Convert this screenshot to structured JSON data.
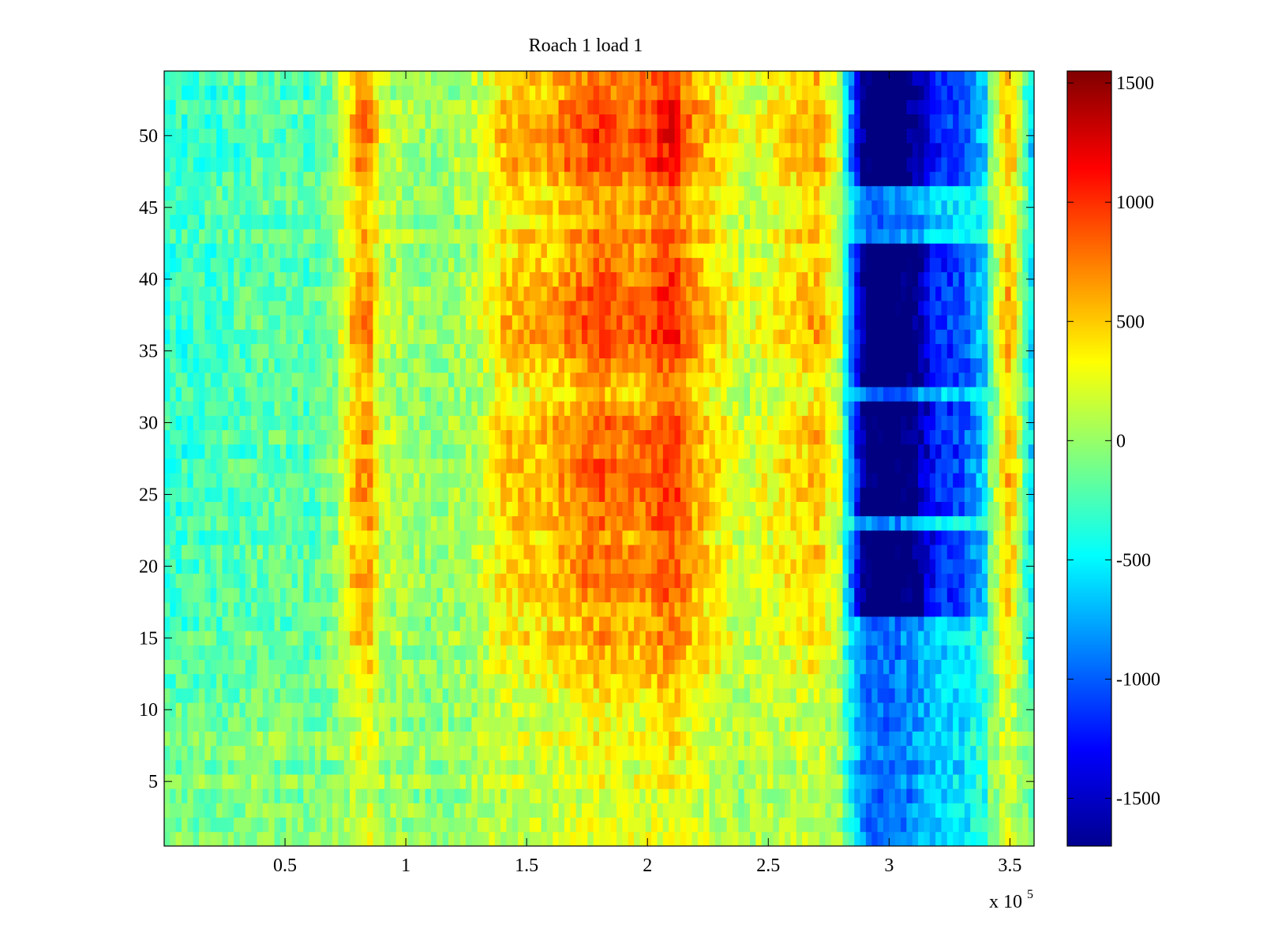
{
  "chart_data": {
    "type": "heatmap",
    "title": "Roach 1 load 1",
    "xlabel": "",
    "ylabel": "",
    "x_multiplier_label": "x 10",
    "x_multiplier_exponent": "5",
    "x_scale": 100000,
    "xlim": [
      0,
      360000
    ],
    "ylim": [
      0.5,
      54.5
    ],
    "x_ticks": [
      50000,
      100000,
      150000,
      200000,
      250000,
      300000,
      350000
    ],
    "x_tick_labels": [
      "0.5",
      "1",
      "1.5",
      "2",
      "2.5",
      "3",
      "3.5"
    ],
    "y_ticks": [
      5,
      10,
      15,
      20,
      25,
      30,
      35,
      40,
      45,
      50
    ],
    "y_tick_labels": [
      "5",
      "10",
      "15",
      "20",
      "25",
      "30",
      "35",
      "40",
      "45",
      "50"
    ],
    "n_rows": 54,
    "colormap": "jet",
    "clim": [
      -1700,
      1550
    ],
    "colorbar_ticks": [
      1500,
      1000,
      500,
      0,
      -500,
      -1000,
      -1500
    ],
    "colorbar_tick_labels": [
      "1500",
      "1000",
      "500",
      "0",
      "-500",
      "-1000",
      "-1500"
    ],
    "column_profile": {
      "x": [
        0,
        20000,
        40000,
        60000,
        70000,
        80000,
        85000,
        90000,
        110000,
        130000,
        140000,
        160000,
        180000,
        195000,
        210000,
        220000,
        240000,
        260000,
        270000,
        280000,
        290000,
        300000,
        310000,
        320000,
        330000,
        340000,
        350000,
        360000
      ],
      "v": [
        -350,
        -300,
        -200,
        -250,
        -100,
        600,
        650,
        100,
        -50,
        100,
        450,
        550,
        850,
        700,
        1000,
        600,
        150,
        400,
        550,
        100,
        -1500,
        -1650,
        -1400,
        -900,
        -800,
        -300,
        600,
        -700
      ]
    },
    "row_weight": {
      "y": [
        1,
        5,
        10,
        13,
        17,
        19,
        22,
        24,
        27,
        30,
        32,
        35,
        38,
        40,
        43,
        46,
        48,
        50,
        54
      ],
      "w": [
        0.3,
        0.3,
        0.4,
        0.7,
        0.8,
        0.95,
        0.85,
        1.0,
        1.0,
        1.0,
        0.7,
        1.05,
        1.1,
        1.0,
        0.9,
        0.75,
        1.15,
        1.15,
        0.95
      ]
    },
    "bands": {
      "blue_region_x": [
        285000,
        315000
      ],
      "blue_region_rows_strong": [
        [
          17,
          22
        ],
        [
          24,
          31
        ],
        [
          33,
          42
        ],
        [
          47,
          54
        ]
      ]
    }
  }
}
